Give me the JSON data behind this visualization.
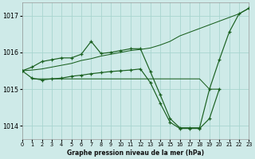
{
  "title": "Graphe pression niveau de la mer (hPa)",
  "bg_color": "#ceeae8",
  "grid_color": "#a8d5d0",
  "line_color": "#1a6020",
  "xlim": [
    0,
    23
  ],
  "ylim": [
    1013.65,
    1017.35
  ],
  "ytick_vals": [
    1014,
    1015,
    1016,
    1017
  ],
  "xtick_vals": [
    0,
    1,
    2,
    3,
    4,
    5,
    6,
    7,
    8,
    9,
    10,
    11,
    12,
    13,
    14,
    15,
    16,
    17,
    18,
    19,
    20,
    21,
    22,
    23
  ],
  "line1_x": [
    0,
    1,
    2,
    3,
    4,
    5,
    6,
    7,
    8,
    9,
    10,
    11,
    12,
    13,
    14,
    15,
    16,
    17,
    18,
    19,
    20,
    21,
    22,
    23
  ],
  "line1_y": [
    1015.5,
    1015.6,
    1015.75,
    1015.8,
    1015.85,
    1015.85,
    1015.95,
    1016.3,
    1015.97,
    1016.0,
    1016.05,
    1016.1,
    1016.1,
    1015.48,
    1014.85,
    1014.2,
    1013.95,
    1013.95,
    1013.95,
    1015.0,
    1015.8,
    1016.55,
    1017.05,
    1017.2
  ],
  "line2_x": [
    0,
    1,
    2,
    3,
    4,
    5,
    6,
    7,
    8,
    9,
    10,
    11,
    12,
    13,
    14,
    15,
    16,
    17,
    18,
    19,
    20,
    21,
    22,
    23
  ],
  "line2_y": [
    1015.5,
    1015.52,
    1015.55,
    1015.6,
    1015.65,
    1015.7,
    1015.78,
    1015.83,
    1015.9,
    1015.95,
    1016.0,
    1016.05,
    1016.08,
    1016.12,
    1016.2,
    1016.3,
    1016.45,
    1016.55,
    1016.65,
    1016.75,
    1016.85,
    1016.95,
    1017.05,
    1017.2
  ],
  "line3_x": [
    0,
    1,
    2,
    3,
    4,
    5,
    6,
    7,
    8,
    9,
    10,
    11,
    12,
    13,
    14,
    15,
    16,
    17,
    18,
    19,
    20
  ],
  "line3_y": [
    1015.5,
    1015.3,
    1015.25,
    1015.28,
    1015.3,
    1015.35,
    1015.38,
    1015.42,
    1015.45,
    1015.48,
    1015.5,
    1015.52,
    1015.55,
    1015.18,
    1014.62,
    1014.1,
    1013.93,
    1013.93,
    1013.93,
    1014.2,
    1015.0
  ],
  "line4_x": [
    1,
    2,
    3,
    4,
    5,
    6,
    7,
    8,
    9,
    10,
    11,
    12,
    13,
    14,
    15,
    16,
    17,
    18,
    19,
    20
  ],
  "line4_y": [
    1015.28,
    1015.28,
    1015.28,
    1015.28,
    1015.28,
    1015.28,
    1015.28,
    1015.28,
    1015.28,
    1015.28,
    1015.28,
    1015.28,
    1015.28,
    1015.28,
    1015.28,
    1015.28,
    1015.28,
    1015.28,
    1015.0,
    1015.0
  ]
}
